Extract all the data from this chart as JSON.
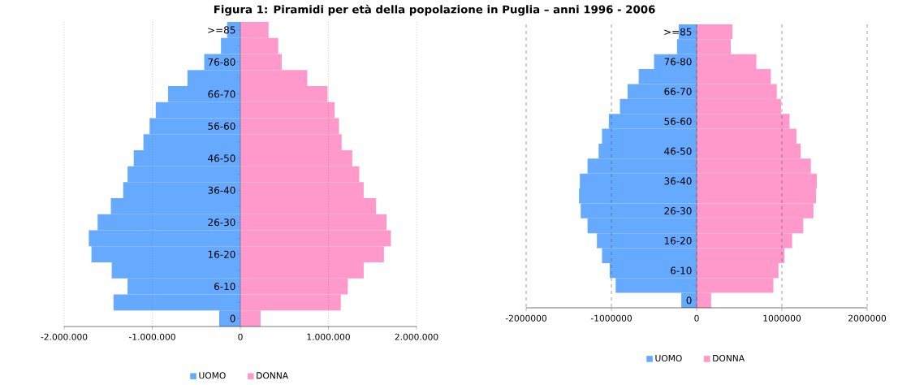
{
  "chart_data": [
    {
      "type": "bar",
      "title": "Figura 1: Piramidi per età della popolazione in Puglia – anni 1996 - 2006",
      "orientation": "horizontal",
      "stacked": true,
      "grid": "x",
      "legend": "bottom",
      "categories": [
        ">=85",
        null,
        "76-80",
        null,
        "66-70",
        null,
        "56-60",
        null,
        "46-50",
        null,
        "36-40",
        null,
        "26-30",
        null,
        "16-20",
        null,
        "6-10",
        null,
        "0"
      ],
      "xlim": [
        -2000000,
        2000000
      ],
      "xticks": [
        {
          "value": -2000000,
          "label": "-2.000.000"
        },
        {
          "value": -1000000,
          "label": "-1.000.000"
        },
        0,
        {
          "value": 1000000,
          "label": "1.000.000"
        },
        {
          "value": 2000000,
          "label": "2.000.000"
        }
      ],
      "series": [
        {
          "name": "UOMO",
          "color": "#66aaff",
          "values": [
            -150000,
            -220000,
            -410000,
            -600000,
            -820000,
            -960000,
            -1030000,
            -1100000,
            -1210000,
            -1280000,
            -1330000,
            -1470000,
            -1620000,
            -1720000,
            -1690000,
            -1460000,
            -1280000,
            -1440000,
            -240000
          ]
        },
        {
          "name": "DONNA",
          "color": "#ff99cc",
          "values": [
            320000,
            430000,
            470000,
            760000,
            990000,
            1070000,
            1120000,
            1150000,
            1270000,
            1350000,
            1400000,
            1540000,
            1660000,
            1710000,
            1630000,
            1400000,
            1220000,
            1140000,
            230000
          ]
        }
      ]
    },
    {
      "type": "bar",
      "orientation": "horizontal",
      "stacked": true,
      "grid": "x",
      "legend": "bottom",
      "categories": [
        ">=85",
        null,
        "76-80",
        null,
        "66-70",
        null,
        "56-60",
        null,
        "46-50",
        null,
        "36-40",
        null,
        "26-30",
        null,
        "16-20",
        null,
        "6-10",
        null,
        "0"
      ],
      "xlim": [
        -2000000,
        2000000
      ],
      "xticks": [
        -2000000,
        -1000000,
        0,
        1000000,
        2000000
      ],
      "series": [
        {
          "name": "UOMO",
          "color": "#66aaff",
          "values": [
            -210000,
            -230000,
            -500000,
            -680000,
            -810000,
            -900000,
            -1030000,
            -1110000,
            -1150000,
            -1280000,
            -1370000,
            -1380000,
            -1360000,
            -1280000,
            -1170000,
            -1110000,
            -1020000,
            -950000,
            -180000
          ]
        },
        {
          "name": "DONNA",
          "color": "#ff99cc",
          "values": [
            420000,
            400000,
            700000,
            870000,
            940000,
            990000,
            1090000,
            1170000,
            1220000,
            1340000,
            1410000,
            1400000,
            1370000,
            1250000,
            1120000,
            1030000,
            960000,
            900000,
            170000
          ]
        }
      ]
    }
  ]
}
